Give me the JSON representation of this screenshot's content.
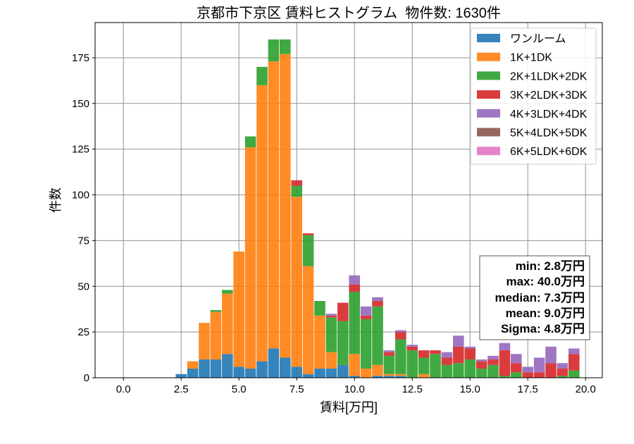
{
  "chart_data": {
    "type": "bar",
    "stacked": true,
    "title": "京都市下京区 賃料ヒストグラム  物件数: 1630件",
    "xlabel": "賃料[万円]",
    "ylabel": "件数",
    "xlim": [
      -1.225,
      20.725
    ],
    "ylim": [
      0,
      194.25
    ],
    "x_ticks": [
      "0.0",
      "2.5",
      "5.0",
      "7.5",
      "10.0",
      "12.5",
      "15.0",
      "17.5",
      "20.0"
    ],
    "y_ticks": [
      "0",
      "25",
      "50",
      "75",
      "100",
      "125",
      "150",
      "175"
    ],
    "grid": true,
    "legend_position": "top-right",
    "x": [
      2.5,
      3.0,
      3.5,
      4.0,
      4.5,
      5.0,
      5.5,
      6.0,
      6.5,
      7.0,
      7.5,
      8.0,
      8.5,
      9.0,
      9.5,
      10.0,
      10.5,
      11.0,
      11.5,
      12.0,
      12.5,
      13.0,
      13.5,
      14.0,
      14.5,
      15.0,
      15.5,
      16.0,
      16.5,
      17.0,
      17.5,
      18.0,
      18.5,
      19.0,
      19.5
    ],
    "series": [
      {
        "name": "ワンルーム",
        "color": "#1f77b4",
        "values": [
          2,
          5,
          10,
          10,
          13,
          6,
          5,
          9,
          16,
          11,
          6,
          2,
          5,
          5,
          7,
          1,
          0,
          1,
          1,
          1,
          0,
          0,
          0,
          0,
          0,
          0,
          0,
          0,
          0,
          0,
          0,
          0,
          0,
          0,
          0
        ]
      },
      {
        "name": "1K+1DK",
        "color": "#ff7f0e",
        "values": [
          0,
          4,
          20,
          26,
          33,
          63,
          121,
          151,
          157,
          166,
          93,
          59,
          29,
          9,
          0,
          12,
          5,
          6,
          1,
          1,
          0,
          2,
          0,
          0,
          0,
          0,
          0,
          0,
          0,
          0,
          0,
          0,
          0,
          0,
          0
        ]
      },
      {
        "name": "2K+1LDK+2DK",
        "color": "#2ca02c",
        "values": [
          0,
          0,
          0,
          1,
          2,
          0,
          6,
          10,
          12,
          8,
          6,
          17,
          8,
          19,
          24,
          34,
          27,
          32,
          10,
          19,
          15,
          9,
          13,
          7,
          8,
          10,
          5,
          7,
          1,
          3,
          0,
          0,
          0,
          1,
          4
        ]
      },
      {
        "name": "3K+2LDK+3DK",
        "color": "#d62728",
        "values": [
          0,
          0,
          0,
          0,
          0,
          0,
          0,
          0,
          0,
          0,
          3,
          1,
          0,
          1,
          10,
          4,
          2,
          3,
          2,
          4,
          2,
          4,
          2,
          4,
          9,
          6,
          4,
          3,
          14,
          5,
          3,
          3,
          8,
          4,
          9
        ]
      },
      {
        "name": "4K+3LDK+4DK",
        "color": "#9467bd",
        "values": [
          0,
          0,
          0,
          0,
          0,
          0,
          0,
          0,
          0,
          0,
          0,
          0,
          0,
          1,
          0,
          5,
          5,
          2,
          1,
          1,
          1,
          0,
          0,
          3,
          6,
          1,
          1,
          2,
          4,
          5,
          3,
          8,
          9,
          3,
          3
        ]
      },
      {
        "name": "5K+4LDK+5DK",
        "color": "#8c564b",
        "values": [
          0,
          0,
          0,
          0,
          0,
          0,
          0,
          0,
          0,
          0,
          0,
          0,
          0,
          0,
          0,
          0,
          0,
          0,
          0,
          0,
          0,
          0,
          0,
          0,
          0,
          0,
          0,
          0,
          0,
          0,
          0,
          0,
          0,
          0,
          0
        ]
      },
      {
        "name": "6K+5LDK+6DK",
        "color": "#e377c2",
        "values": [
          0,
          0,
          0,
          0,
          0,
          0,
          0,
          0,
          0,
          0,
          0,
          0,
          0,
          0,
          0,
          0,
          0,
          0,
          0,
          0,
          0,
          0,
          0,
          0,
          0,
          0,
          0,
          0,
          0,
          0,
          0,
          0,
          0,
          0,
          0
        ]
      }
    ],
    "stats_box": {
      "lines": [
        "min: 2.8万円",
        "max: 40.0万円",
        "median: 7.3万円",
        "mean: 9.0万円",
        "Sigma: 4.8万円"
      ]
    }
  }
}
